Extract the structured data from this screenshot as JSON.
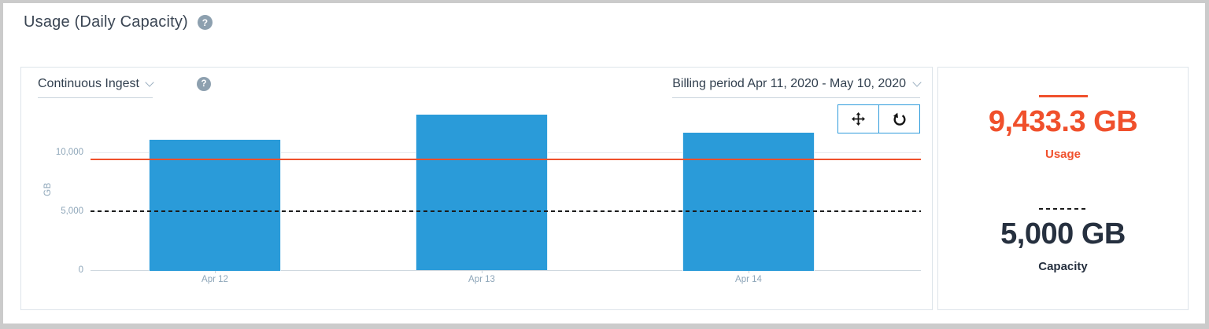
{
  "header": {
    "title": "Usage (Daily Capacity)",
    "help_glyph": "?"
  },
  "chart_card": {
    "dataset_selector": {
      "label": "Continuous Ingest"
    },
    "billing_period": {
      "label": "Billing period Apr 11, 2020 - May 10, 2020"
    },
    "toolbar": {
      "pan": "move-icon",
      "reset": "reset-icon"
    }
  },
  "chart_data": {
    "type": "bar",
    "categories": [
      "Apr 12",
      "Apr 13",
      "Apr 14"
    ],
    "values": [
      11100,
      13200,
      11700
    ],
    "title": "",
    "xlabel": "",
    "ylabel": "GB",
    "ylim": [
      0,
      13800
    ],
    "yticks": [
      {
        "value": 0,
        "label": "0"
      },
      {
        "value": 5000,
        "label": "5,000"
      },
      {
        "value": 10000,
        "label": "10,000"
      }
    ],
    "grid": "horizontal",
    "legend": "none",
    "bar_color": "#2a9bd9",
    "plot_lines": [
      {
        "name": "usage",
        "value": 9433.3,
        "color": "#f0502c",
        "style": "solid"
      },
      {
        "name": "capacity",
        "value": 5000,
        "color": "#1b1b1b",
        "style": "dashed"
      }
    ]
  },
  "summary": {
    "usage": {
      "value": "9,433.3 GB",
      "label": "Usage",
      "color": "#f0502c",
      "swatch": "solid-line"
    },
    "capacity": {
      "value": "5,000 GB",
      "label": "Capacity",
      "color": "#26303f",
      "swatch": "dashed-line"
    }
  },
  "colors": {
    "bar": "#2a9bd9",
    "usage_accent": "#f0502c",
    "toolbar_border": "#2e9bdb",
    "axis_text": "#8ea6b9"
  }
}
